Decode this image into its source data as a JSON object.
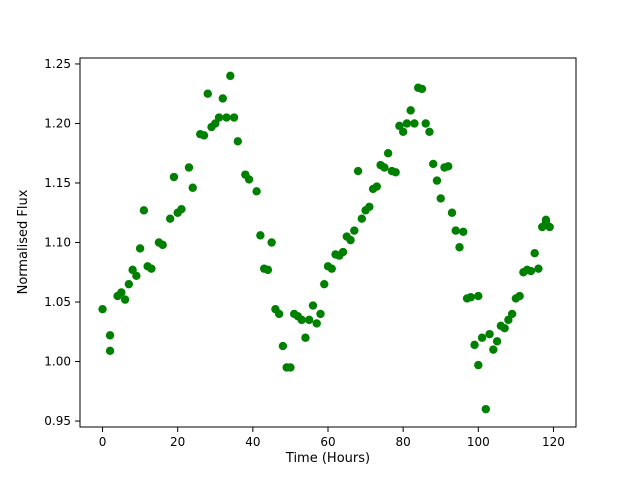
{
  "figure": {
    "background": "#ffffff"
  },
  "chart_data": {
    "type": "scatter",
    "title": "",
    "xlabel": "Time (Hours)",
    "ylabel": "Normalised Flux",
    "marker_color": "#008000",
    "marker_shape": "circle",
    "grid": false,
    "legend": null,
    "xlim": [
      -6,
      126
    ],
    "ylim": [
      0.945,
      1.255
    ],
    "xticks": [
      0,
      20,
      40,
      60,
      80,
      100,
      120
    ],
    "yticks": [
      0.95,
      1.0,
      1.05,
      1.1,
      1.15,
      1.2,
      1.25
    ],
    "x": [
      0,
      2,
      2,
      4,
      5,
      6,
      7,
      8,
      9,
      10,
      11,
      12,
      13,
      15,
      16,
      18,
      19,
      20,
      21,
      23,
      24,
      26,
      27,
      28,
      29,
      30,
      31,
      32,
      33,
      34,
      35,
      36,
      38,
      39,
      41,
      42,
      43,
      44,
      45,
      46,
      47,
      48,
      49,
      50,
      51,
      52,
      53,
      54,
      55,
      56,
      57,
      58,
      59,
      60,
      61,
      62,
      63,
      64,
      65,
      66,
      67,
      68,
      69,
      70,
      71,
      72,
      73,
      74,
      75,
      76,
      77,
      78,
      79,
      80,
      81,
      82,
      83,
      84,
      85,
      86,
      87,
      88,
      89,
      90,
      91,
      92,
      93,
      94,
      95,
      96,
      97,
      98,
      99,
      100,
      100,
      101,
      102,
      103,
      104,
      105,
      106,
      107,
      108,
      109,
      110,
      111,
      112,
      113,
      114,
      115,
      116,
      117,
      118,
      118,
      119
    ],
    "y": [
      1.044,
      1.022,
      1.009,
      1.055,
      1.058,
      1.052,
      1.065,
      1.077,
      1.072,
      1.095,
      1.127,
      1.08,
      1.078,
      1.1,
      1.098,
      1.12,
      1.155,
      1.125,
      1.128,
      1.163,
      1.146,
      1.191,
      1.19,
      1.225,
      1.197,
      1.2,
      1.205,
      1.221,
      1.205,
      1.24,
      1.205,
      1.185,
      1.157,
      1.153,
      1.143,
      1.106,
      1.078,
      1.077,
      1.1,
      1.044,
      1.04,
      1.013,
      0.995,
      0.995,
      1.04,
      1.038,
      1.035,
      1.02,
      1.035,
      1.047,
      1.032,
      1.04,
      1.065,
      1.08,
      1.078,
      1.09,
      1.089,
      1.092,
      1.105,
      1.102,
      1.11,
      1.16,
      1.12,
      1.127,
      1.13,
      1.145,
      1.147,
      1.165,
      1.163,
      1.175,
      1.16,
      1.159,
      1.198,
      1.193,
      1.2,
      1.211,
      1.2,
      1.23,
      1.229,
      1.2,
      1.193,
      1.166,
      1.152,
      1.137,
      1.163,
      1.164,
      1.125,
      1.11,
      1.096,
      1.109,
      1.053,
      1.054,
      1.014,
      1.055,
      0.997,
      1.02,
      0.96,
      1.023,
      1.01,
      1.017,
      1.03,
      1.028,
      1.035,
      1.04,
      1.053,
      1.055,
      1.075,
      1.077,
      1.076,
      1.091,
      1.078,
      1.113,
      1.119,
      1.117,
      1.113
    ]
  }
}
